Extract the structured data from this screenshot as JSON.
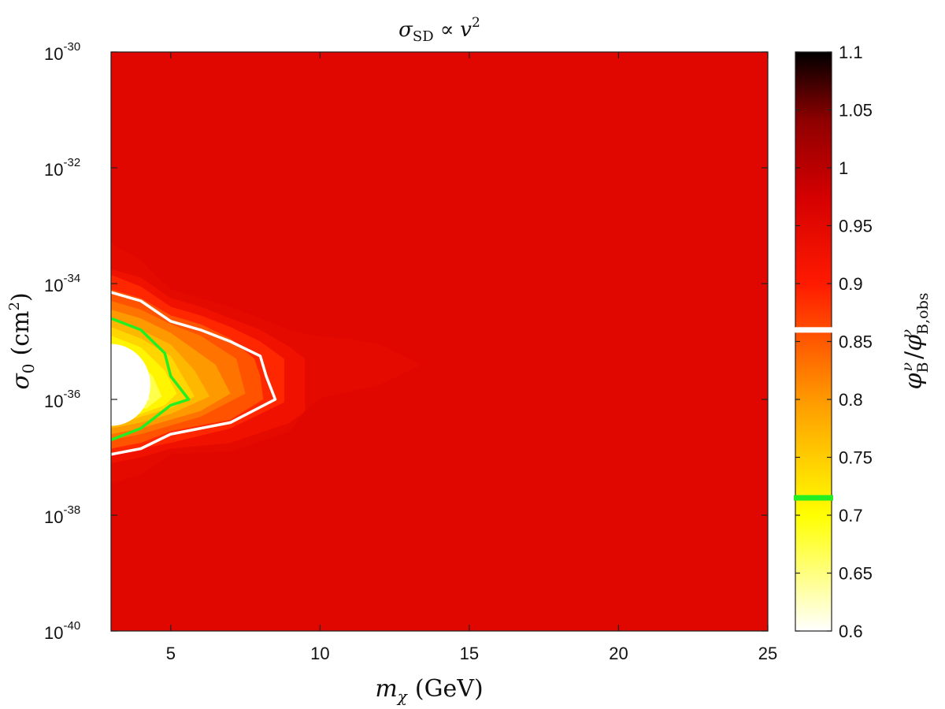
{
  "chart_data": {
    "type": "heatmap",
    "title": "σ_SD ∝ v²",
    "title_parts": {
      "sigma": "σ",
      "sub": "SD",
      "prop": "∝",
      "v": "v",
      "exp": "2"
    },
    "xlabel": "m_χ (GeV)",
    "xlabel_parts": {
      "m": "m",
      "sub": "χ",
      "unit": "(GeV)"
    },
    "ylabel": "σ_0 (cm²)",
    "ylabel_parts": {
      "sigma": "σ",
      "sub": "0",
      "unit_open": "(cm",
      "unit_exp": "2",
      "unit_close": ")"
    },
    "xlim": [
      3,
      25
    ],
    "ylim_log10": [
      -40,
      -30
    ],
    "y_scale": "log",
    "x_ticks": [
      {
        "value": 5,
        "label": "5"
      },
      {
        "value": 10,
        "label": "10"
      },
      {
        "value": 15,
        "label": "15"
      },
      {
        "value": 20,
        "label": "20"
      },
      {
        "value": 25,
        "label": "25"
      }
    ],
    "y_ticks": [
      {
        "value": -30,
        "base": "10",
        "exp": "-30"
      },
      {
        "value": -32,
        "base": "10",
        "exp": "-32"
      },
      {
        "value": -34,
        "base": "10",
        "exp": "-34"
      },
      {
        "value": -36,
        "base": "10",
        "exp": "-36"
      },
      {
        "value": -38,
        "base": "10",
        "exp": "-38"
      },
      {
        "value": -40,
        "base": "10",
        "exp": "-40"
      }
    ],
    "colorbar": {
      "label": "φ_B^ν / φ_B,obs^ν",
      "label_parts": {
        "phi": "φ",
        "nu": "ν",
        "sub": "B",
        "slash": "/",
        "sub2": "B,obs"
      },
      "range": [
        0.6,
        1.1
      ],
      "ticks": [
        "0.6",
        "0.65",
        "0.7",
        "0.75",
        "0.8",
        "0.85",
        "0.9",
        "0.95",
        "1",
        "1.05",
        "1.1"
      ],
      "markers": [
        {
          "name": "white-line",
          "value": 0.86,
          "color": "#ffffff"
        },
        {
          "name": "green-line",
          "value": 0.715,
          "color": "#22ee22"
        }
      ]
    },
    "background_level": 0.955,
    "contours": [
      {
        "level": 0.945,
        "points": [
          [
            3,
            -33.3
          ],
          [
            4,
            -33.6
          ],
          [
            5,
            -34.1
          ],
          [
            6,
            -34.25
          ],
          [
            7,
            -34.4
          ],
          [
            8,
            -34.6
          ],
          [
            9,
            -34.8
          ],
          [
            10,
            -34.92
          ],
          [
            11,
            -34.95
          ],
          [
            12,
            -35.05
          ],
          [
            13.4,
            -35.4
          ],
          [
            12,
            -35.75
          ],
          [
            10,
            -35.98
          ],
          [
            9.5,
            -36.2
          ],
          [
            9,
            -36.55
          ],
          [
            7,
            -36.9
          ],
          [
            5,
            -36.95
          ],
          [
            4,
            -37.3
          ],
          [
            3,
            -37.45
          ]
        ]
      },
      {
        "level": 0.925,
        "points": [
          [
            3,
            -33.75
          ],
          [
            4,
            -33.9
          ],
          [
            5,
            -34.25
          ],
          [
            6,
            -34.4
          ],
          [
            7,
            -34.6
          ],
          [
            8,
            -34.8
          ],
          [
            9,
            -35.1
          ],
          [
            9.5,
            -35.3
          ],
          [
            9.5,
            -36.2
          ],
          [
            9,
            -36.4
          ],
          [
            7,
            -36.75
          ],
          [
            5,
            -36.85
          ],
          [
            4,
            -37.0
          ],
          [
            3,
            -37.1
          ]
        ]
      },
      {
        "level": 0.89,
        "points": [
          [
            3,
            -33.85
          ],
          [
            4,
            -34.05
          ],
          [
            5,
            -34.4
          ],
          [
            6,
            -34.55
          ],
          [
            7,
            -34.75
          ],
          [
            8,
            -35.0
          ],
          [
            8.8,
            -35.3
          ],
          [
            8.8,
            -36.05
          ],
          [
            7,
            -36.5
          ],
          [
            5,
            -36.75
          ],
          [
            4,
            -36.85
          ],
          [
            3,
            -36.95
          ]
        ]
      },
      {
        "level": 0.855,
        "points": [
          [
            3,
            -34.1
          ],
          [
            4,
            -34.25
          ],
          [
            5,
            -34.55
          ],
          [
            6,
            -34.7
          ],
          [
            7,
            -34.95
          ],
          [
            7.8,
            -35.3
          ],
          [
            8,
            -35.6
          ],
          [
            8.1,
            -36.0
          ],
          [
            7,
            -36.35
          ],
          [
            5,
            -36.55
          ],
          [
            4,
            -36.75
          ],
          [
            3,
            -36.85
          ]
        ]
      },
      {
        "level": 0.83,
        "points": [
          [
            3,
            -34.3
          ],
          [
            4,
            -34.45
          ],
          [
            5,
            -34.7
          ],
          [
            6,
            -34.9
          ],
          [
            7.2,
            -35.3
          ],
          [
            7.5,
            -35.9
          ],
          [
            6,
            -36.3
          ],
          [
            5,
            -36.45
          ],
          [
            4,
            -36.6
          ],
          [
            3,
            -36.7
          ]
        ]
      },
      {
        "level": 0.8,
        "points": [
          [
            3,
            -34.45
          ],
          [
            4,
            -34.6
          ],
          [
            5,
            -34.85
          ],
          [
            6.5,
            -35.4
          ],
          [
            7,
            -35.9
          ],
          [
            6,
            -36.2
          ],
          [
            5,
            -36.35
          ],
          [
            4,
            -36.5
          ],
          [
            3,
            -36.6
          ]
        ]
      },
      {
        "level": 0.77,
        "points": [
          [
            3,
            -34.6
          ],
          [
            4,
            -34.8
          ],
          [
            5,
            -35.05
          ],
          [
            5.8,
            -35.5
          ],
          [
            6.3,
            -35.95
          ],
          [
            5,
            -36.25
          ],
          [
            4,
            -36.4
          ],
          [
            3,
            -36.5
          ]
        ]
      },
      {
        "level": 0.74,
        "points": [
          [
            3,
            -34.75
          ],
          [
            4,
            -34.95
          ],
          [
            5,
            -35.25
          ],
          [
            5.8,
            -35.95
          ],
          [
            5,
            -36.15
          ],
          [
            4,
            -36.3
          ],
          [
            3,
            -36.45
          ]
        ]
      },
      {
        "level": 0.71,
        "points": [
          [
            3,
            -34.9
          ],
          [
            4,
            -35.1
          ],
          [
            4.8,
            -35.5
          ],
          [
            5.2,
            -35.9
          ],
          [
            4.8,
            -36.1
          ],
          [
            4,
            -36.25
          ],
          [
            3,
            -36.35
          ]
        ]
      },
      {
        "level": 0.67,
        "points": [
          [
            3,
            -35.1
          ],
          [
            3.8,
            -35.3
          ],
          [
            4.4,
            -35.6
          ],
          [
            4.7,
            -35.95
          ],
          [
            4.2,
            -36.15
          ],
          [
            3,
            -36.3
          ]
        ]
      },
      {
        "level": 0.63,
        "points": [
          [
            3,
            -35.2
          ],
          [
            3.5,
            -35.4
          ],
          [
            4,
            -35.7
          ],
          [
            4.3,
            -36.0
          ],
          [
            3.7,
            -36.15
          ],
          [
            3,
            -36.2
          ]
        ]
      }
    ],
    "lines": [
      {
        "name": "white-contour",
        "color": "#ffffff",
        "points": [
          [
            3,
            -34.15
          ],
          [
            4,
            -34.3
          ],
          [
            5,
            -34.65
          ],
          [
            6,
            -34.8
          ],
          [
            7,
            -35.0
          ],
          [
            8,
            -35.25
          ],
          [
            8.2,
            -35.6
          ],
          [
            8.5,
            -36.0
          ],
          [
            7,
            -36.4
          ],
          [
            5,
            -36.6
          ],
          [
            4,
            -36.85
          ],
          [
            3,
            -36.95
          ]
        ]
      },
      {
        "name": "green-contour",
        "color": "#22ee22",
        "points": [
          [
            3,
            -34.6
          ],
          [
            4,
            -34.8
          ],
          [
            4.8,
            -35.2
          ],
          [
            5,
            -35.6
          ],
          [
            5.6,
            -36.0
          ],
          [
            5,
            -36.1
          ],
          [
            4.5,
            -36.3
          ],
          [
            4,
            -36.5
          ],
          [
            3,
            -36.7
          ]
        ]
      }
    ]
  }
}
